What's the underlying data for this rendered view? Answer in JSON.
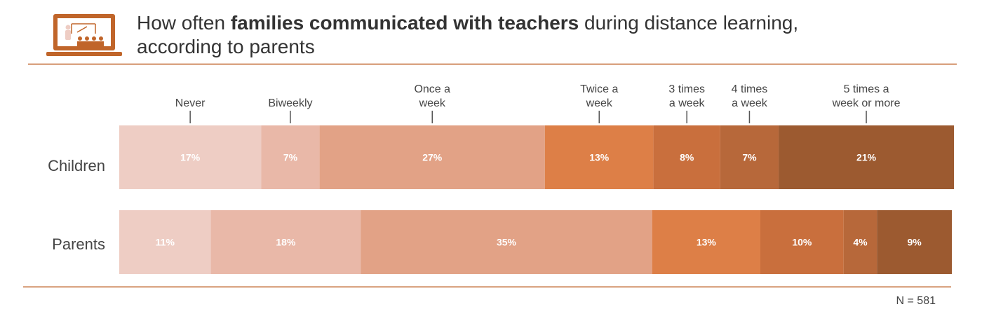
{
  "title": {
    "prefix": "How often ",
    "bold": "families communicated with teachers",
    "suffix": " during distance learning,",
    "line2": "according to parents"
  },
  "logo_icon": "teacher-presentation-laptop-icon",
  "colors": {
    "accent": "#C0652A",
    "categories": [
      "#EECDC4",
      "#E9B8A8",
      "#E2A286",
      "#DD7F47",
      "#C96F3D",
      "#B7683A",
      "#9C5A30"
    ],
    "text_light": "#ffffff"
  },
  "footnote": "N = 581",
  "chart_data": {
    "type": "bar",
    "orientation": "horizontal",
    "stacked": true,
    "normalized": true,
    "categories": [
      "Never",
      "Biweekly",
      "Once a week",
      "Twice a week",
      "3 times a week",
      "4 times a week",
      "5 times a week or more"
    ],
    "category_label_lines": [
      [
        "Never"
      ],
      [
        "Biweekly"
      ],
      [
        "Once a",
        "week"
      ],
      [
        "Twice a",
        "week"
      ],
      [
        "3 times",
        "a week"
      ],
      [
        "4 times",
        "a week"
      ],
      [
        "5 times a",
        "week or more"
      ]
    ],
    "series": [
      {
        "name": "Children",
        "values": [
          17,
          7,
          27,
          13,
          8,
          7,
          21
        ],
        "labels": [
          "17%",
          "7%",
          "27%",
          "13%",
          "8%",
          "7%",
          "21%"
        ]
      },
      {
        "name": "Parents",
        "values": [
          11,
          18,
          35,
          13,
          10,
          4,
          9
        ],
        "labels": [
          "11%",
          "18%",
          "35%",
          "13%",
          "10%",
          "4%",
          "9%"
        ]
      }
    ],
    "value_unit": "%",
    "legend_placement": "top",
    "grid": false
  }
}
